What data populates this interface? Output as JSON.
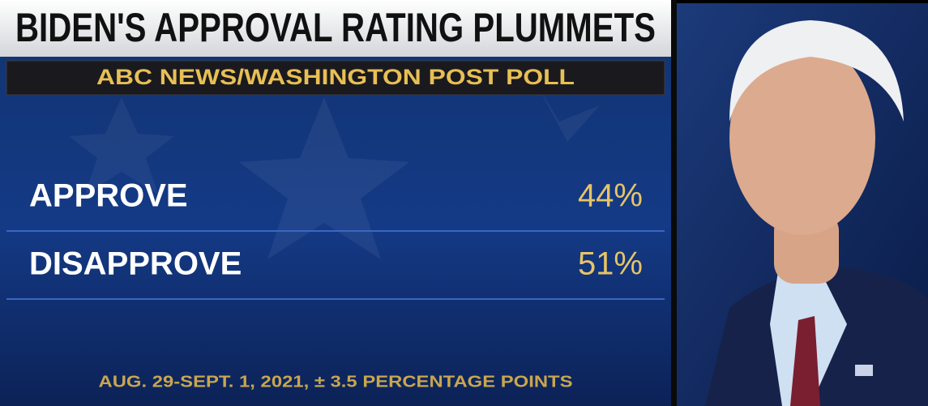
{
  "header": {
    "title": "BIDEN'S APPROVAL RATING PLUMMETS",
    "subtitle": "ABC NEWS/WASHINGTON POST POLL"
  },
  "table": {
    "rows": [
      [
        "APPROVE",
        "44%"
      ],
      [
        "DISAPPROVE",
        "51%"
      ]
    ]
  },
  "footer": "AUG. 29-SEPT. 1, 2021, ± 3.5 PERCENTAGE POINTS"
}
